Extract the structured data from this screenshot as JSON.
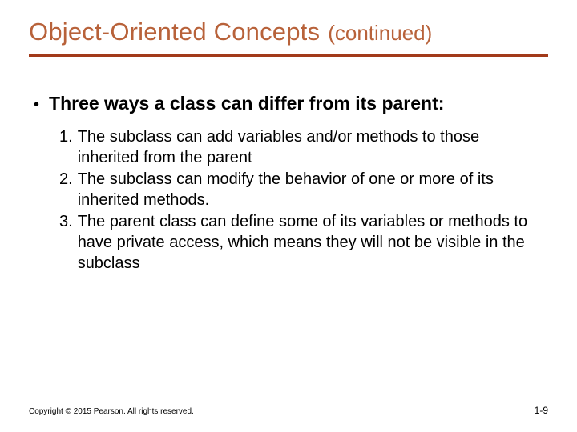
{
  "title": {
    "main": "Object-Oriented Concepts",
    "suffix": "(continued)",
    "color": "#b8623a"
  },
  "rule_color": "#a23a1a",
  "bullet": {
    "glyph": "•",
    "lead": "Three ways a class can differ from its parent:"
  },
  "items": [
    {
      "n": "1.",
      "text": "The subclass can add variables and/or methods to those inherited from the parent"
    },
    {
      "n": "2.",
      "text": "The subclass can modify the behavior of one or more of its inherited methods."
    },
    {
      "n": "3.",
      "text": "The parent class can define some of its variables or methods to have private access, which means they will not be visible in the subclass"
    }
  ],
  "footer": {
    "copyright": "Copyright © 2015 Pearson. All rights reserved.",
    "page": "1-9"
  }
}
